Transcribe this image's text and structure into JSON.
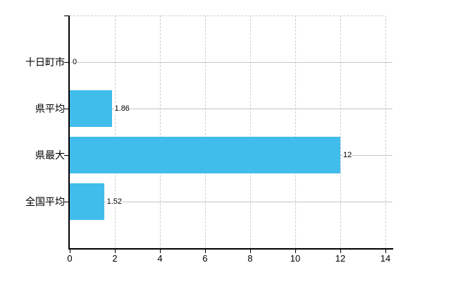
{
  "chart_data": {
    "type": "bar",
    "orientation": "horizontal",
    "title": "",
    "categories": [
      "十日町市",
      "県平均",
      "県最大",
      "全国平均"
    ],
    "values": [
      0,
      1.86,
      12,
      1.52
    ],
    "value_labels": [
      "0",
      "1.86",
      "12",
      "1.52"
    ],
    "x_ticks": [
      0,
      2,
      4,
      6,
      8,
      10,
      12,
      14
    ],
    "x_tick_labels": [
      "0",
      "2",
      "4",
      "6",
      "8",
      "10",
      "12",
      "14"
    ],
    "xlim": [
      0,
      14
    ],
    "grid": "on",
    "legend": "none",
    "colors": {
      "bar": "#41bdeb",
      "axis": "#000000",
      "h_gridline": "#c4c4c4",
      "v_gridline": "#d2cad2",
      "text": "#000000",
      "background": "#ffffff"
    }
  }
}
